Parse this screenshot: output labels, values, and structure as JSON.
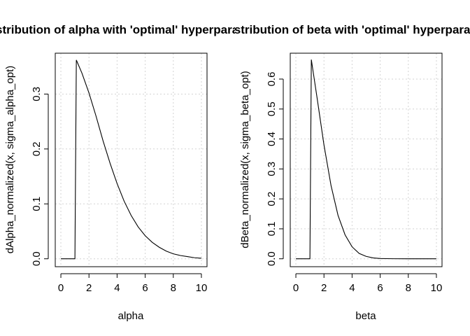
{
  "chart_data": [
    {
      "type": "line",
      "title": "Distribution of alpha with 'optimal' hyperparameters",
      "xlabel": "alpha",
      "ylabel": "dAlpha_normalized(x, sigma_alpha_opt)",
      "xlim": [
        0,
        10
      ],
      "ylim": [
        0,
        0.36
      ],
      "xticks": [
        "0",
        "2",
        "4",
        "6",
        "8",
        "10"
      ],
      "yticks": [
        "0.0",
        "0.1",
        "0.2",
        "0.3"
      ],
      "grid": true,
      "x": [
        0,
        1.0,
        1.0,
        1.1,
        1.5,
        2,
        2.5,
        3,
        3.5,
        4,
        4.5,
        5,
        5.5,
        6,
        6.5,
        7,
        7.5,
        8,
        8.5,
        9,
        9.5,
        10
      ],
      "y": [
        0,
        0,
        0,
        0.362,
        0.338,
        0.302,
        0.26,
        0.215,
        0.174,
        0.137,
        0.105,
        0.079,
        0.058,
        0.042,
        0.03,
        0.021,
        0.014,
        0.009,
        0.006,
        0.004,
        0.002,
        0.001
      ]
    },
    {
      "type": "line",
      "title": "Distribution of beta with 'optimal' hyperparameters",
      "xlabel": "beta",
      "ylabel": "dBeta_normalized(x, sigma_beta_opt)",
      "xlim": [
        0,
        10
      ],
      "ylim": [
        0,
        0.66
      ],
      "xticks": [
        "0",
        "2",
        "4",
        "6",
        "8",
        "10"
      ],
      "yticks": [
        "0.0",
        "0.1",
        "0.2",
        "0.3",
        "0.4",
        "0.5",
        "0.6"
      ],
      "grid": true,
      "x": [
        0,
        1.0,
        1.0,
        1.1,
        1.5,
        2,
        2.5,
        3,
        3.5,
        4,
        4.5,
        5,
        5.5,
        6,
        6.5,
        7,
        8,
        9,
        10
      ],
      "y": [
        0,
        0,
        0,
        0.665,
        0.54,
        0.38,
        0.245,
        0.145,
        0.08,
        0.04,
        0.018,
        0.008,
        0.003,
        0.001,
        0.0005,
        0.0002,
        0,
        0,
        0
      ]
    }
  ]
}
